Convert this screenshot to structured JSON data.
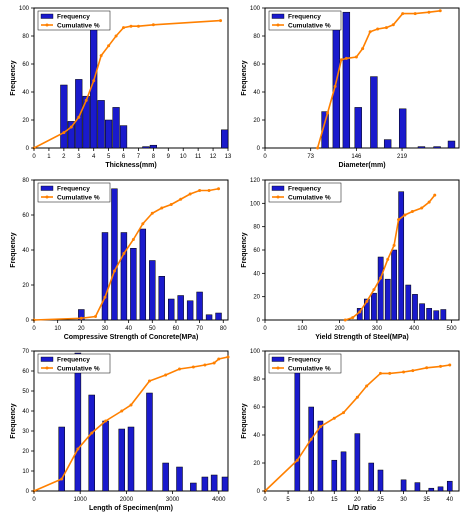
{
  "colors": {
    "frequency_bar": "#1a1acc",
    "bar_edge": "#000000",
    "cumulative_line": "#ff8000",
    "axis": "#000000"
  },
  "chart_data": [
    {
      "type": "bar",
      "xlabel": "Thickness(mm)",
      "ylabel": "Frequency",
      "xlim": [
        0,
        13
      ],
      "ylim": [
        0,
        100
      ],
      "xticks": [
        {
          "v": 0,
          "t": "0"
        },
        {
          "v": 1,
          "t": "1"
        },
        {
          "v": 2,
          "t": "2"
        },
        {
          "v": 3,
          "t": "3"
        },
        {
          "v": 4,
          "t": "4"
        },
        {
          "v": 5,
          "t": "5"
        },
        {
          "v": 6,
          "t": "6"
        },
        {
          "v": 7,
          "t": "7"
        },
        {
          "v": 8,
          "t": "8"
        },
        {
          "v": 9,
          "t": "9"
        },
        {
          "v": 10,
          "t": "10"
        },
        {
          "v": 11,
          "t": "11"
        },
        {
          "v": 12,
          "t": "12"
        },
        {
          "v": 13,
          "t": "13"
        }
      ],
      "yticks": [
        {
          "v": 0,
          "t": "0"
        },
        {
          "v": 20,
          "t": "20"
        },
        {
          "v": 40,
          "t": "40"
        },
        {
          "v": 60,
          "t": "60"
        },
        {
          "v": 80,
          "t": "80"
        },
        {
          "v": 100,
          "t": "100"
        }
      ],
      "bar_width": 0.45,
      "bars": [
        [
          2,
          45
        ],
        [
          2.5,
          19
        ],
        [
          3,
          49
        ],
        [
          3.5,
          37
        ],
        [
          4,
          89
        ],
        [
          4.5,
          34
        ],
        [
          5,
          20
        ],
        [
          5.5,
          29
        ],
        [
          6,
          16
        ],
        [
          7.5,
          1
        ],
        [
          8,
          2
        ],
        [
          13,
          13
        ]
      ],
      "legend": [
        "Frequency",
        "Cumulative %"
      ],
      "legend_position": "top-left",
      "cumulative": [
        [
          0,
          0
        ],
        [
          2,
          11
        ],
        [
          2.5,
          15
        ],
        [
          3,
          22
        ],
        [
          3.5,
          34
        ],
        [
          4,
          48
        ],
        [
          4.5,
          66
        ],
        [
          5,
          73
        ],
        [
          5.5,
          80
        ],
        [
          6,
          86
        ],
        [
          6.5,
          87
        ],
        [
          7,
          87
        ],
        [
          8,
          88
        ],
        [
          12.5,
          91
        ]
      ]
    },
    {
      "type": "bar",
      "xlabel": "Diameter(mm)",
      "ylabel": "Frequency",
      "xlim": [
        0,
        310
      ],
      "ylim": [
        0,
        100
      ],
      "xticks": [
        {
          "v": 0,
          "t": "0"
        },
        {
          "v": 73,
          "t": "73"
        },
        {
          "v": 146,
          "t": "146"
        },
        {
          "v": 219,
          "t": "219"
        }
      ],
      "yticks": [
        {
          "v": 0,
          "t": "0"
        },
        {
          "v": 20,
          "t": "20"
        },
        {
          "v": 40,
          "t": "40"
        },
        {
          "v": 60,
          "t": "60"
        },
        {
          "v": 80,
          "t": "80"
        },
        {
          "v": 100,
          "t": "100"
        }
      ],
      "bar_width": 11,
      "bars": [
        [
          96,
          26
        ],
        [
          114,
          95
        ],
        [
          130,
          97
        ],
        [
          149,
          29
        ],
        [
          174,
          51
        ],
        [
          196,
          6
        ],
        [
          220,
          28
        ],
        [
          250,
          1
        ],
        [
          275,
          1
        ],
        [
          298,
          5
        ]
      ],
      "legend": [
        "Frequency",
        "Cumulative %"
      ],
      "legend_position": "top-left",
      "cumulative": [
        [
          84,
          0
        ],
        [
          100,
          25
        ],
        [
          112,
          44
        ],
        [
          122,
          63
        ],
        [
          130,
          64
        ],
        [
          146,
          65
        ],
        [
          156,
          71
        ],
        [
          168,
          83
        ],
        [
          180,
          85
        ],
        [
          194,
          86
        ],
        [
          205,
          88
        ],
        [
          220,
          96
        ],
        [
          240,
          96
        ],
        [
          262,
          97
        ],
        [
          280,
          98
        ]
      ]
    },
    {
      "type": "bar",
      "xlabel": "Compressive Strength of Concrete(MPa)",
      "ylabel": "Frequency",
      "xlim": [
        0,
        82
      ],
      "ylim": [
        0,
        80
      ],
      "xticks": [
        {
          "v": 0,
          "t": "0"
        },
        {
          "v": 10,
          "t": "10"
        },
        {
          "v": 20,
          "t": "20"
        },
        {
          "v": 30,
          "t": "30"
        },
        {
          "v": 40,
          "t": "40"
        },
        {
          "v": 50,
          "t": "50"
        },
        {
          "v": 60,
          "t": "60"
        },
        {
          "v": 70,
          "t": "70"
        },
        {
          "v": 80,
          "t": "80"
        }
      ],
      "yticks": [
        {
          "v": 0,
          "t": "0"
        },
        {
          "v": 20,
          "t": "20"
        },
        {
          "v": 40,
          "t": "40"
        },
        {
          "v": 60,
          "t": "60"
        },
        {
          "v": 80,
          "t": "80"
        }
      ],
      "bar_width": 2.5,
      "bars": [
        [
          20,
          6
        ],
        [
          30,
          50
        ],
        [
          34,
          75
        ],
        [
          38,
          50
        ],
        [
          42,
          41
        ],
        [
          46,
          52
        ],
        [
          50,
          34
        ],
        [
          54,
          25
        ],
        [
          58,
          12
        ],
        [
          62,
          14
        ],
        [
          66,
          11
        ],
        [
          70,
          16
        ],
        [
          74,
          3
        ],
        [
          78,
          4
        ]
      ],
      "legend": [
        "Frequency",
        "Cumulative %"
      ],
      "legend_position": "top-left",
      "cumulative": [
        [
          0,
          0
        ],
        [
          20,
          1
        ],
        [
          26,
          2
        ],
        [
          30,
          13
        ],
        [
          34,
          28
        ],
        [
          38,
          38
        ],
        [
          42,
          46
        ],
        [
          46,
          55
        ],
        [
          50,
          61
        ],
        [
          54,
          64
        ],
        [
          58,
          66
        ],
        [
          62,
          69
        ],
        [
          66,
          72
        ],
        [
          70,
          74
        ],
        [
          74,
          74
        ],
        [
          78,
          75
        ]
      ]
    },
    {
      "type": "bar",
      "xlabel": "Yield Strength of Steel(MPa)",
      "ylabel": "Frequency",
      "xlim": [
        0,
        520
      ],
      "ylim": [
        0,
        120
      ],
      "xticks": [
        {
          "v": 0,
          "t": "0"
        },
        {
          "v": 100,
          "t": "100"
        },
        {
          "v": 200,
          "t": "200"
        },
        {
          "v": 300,
          "t": "300"
        },
        {
          "v": 400,
          "t": "400"
        },
        {
          "v": 500,
          "t": "500"
        }
      ],
      "yticks": [
        {
          "v": 0,
          "t": "0"
        },
        {
          "v": 20,
          "t": "20"
        },
        {
          "v": 40,
          "t": "40"
        },
        {
          "v": 60,
          "t": "60"
        },
        {
          "v": 80,
          "t": "80"
        },
        {
          "v": 100,
          "t": "100"
        },
        {
          "v": 120,
          "t": "120"
        }
      ],
      "bar_width": 14,
      "bars": [
        [
          254,
          10
        ],
        [
          273,
          18
        ],
        [
          292,
          23
        ],
        [
          310,
          54
        ],
        [
          329,
          35
        ],
        [
          346,
          60
        ],
        [
          365,
          110
        ],
        [
          384,
          30
        ],
        [
          402,
          22
        ],
        [
          421,
          14
        ],
        [
          440,
          10
        ],
        [
          459,
          8
        ],
        [
          478,
          9
        ]
      ],
      "legend": [
        "Frequency",
        "Cumulative %"
      ],
      "legend_position": "top-left",
      "cumulative": [
        [
          215,
          0
        ],
        [
          235,
          2
        ],
        [
          254,
          7
        ],
        [
          273,
          16
        ],
        [
          292,
          26
        ],
        [
          310,
          36
        ],
        [
          329,
          52
        ],
        [
          346,
          64
        ],
        [
          358,
          86
        ],
        [
          375,
          90
        ],
        [
          395,
          93
        ],
        [
          420,
          96
        ],
        [
          440,
          101
        ],
        [
          455,
          107
        ]
      ]
    },
    {
      "type": "bar",
      "xlabel": "Length of Specimen(mm)",
      "ylabel": "Frequency",
      "xlim": [
        0,
        4200
      ],
      "ylim": [
        0,
        70
      ],
      "xticks": [
        {
          "v": 0,
          "t": "0"
        },
        {
          "v": 1000,
          "t": "1000"
        },
        {
          "v": 2000,
          "t": "2000"
        },
        {
          "v": 3000,
          "t": "3000"
        },
        {
          "v": 4000,
          "t": "4000"
        }
      ],
      "yticks": [
        {
          "v": 0,
          "t": "0"
        },
        {
          "v": 10,
          "t": "10"
        },
        {
          "v": 20,
          "t": "20"
        },
        {
          "v": 30,
          "t": "30"
        },
        {
          "v": 40,
          "t": "40"
        },
        {
          "v": 50,
          "t": "50"
        },
        {
          "v": 60,
          "t": "60"
        },
        {
          "v": 70,
          "t": "70"
        }
      ],
      "bar_width": 130,
      "bars": [
        [
          600,
          32
        ],
        [
          950,
          69
        ],
        [
          1250,
          48
        ],
        [
          1550,
          35
        ],
        [
          1900,
          31
        ],
        [
          2100,
          32
        ],
        [
          2500,
          49
        ],
        [
          2850,
          14
        ],
        [
          3150,
          12
        ],
        [
          3450,
          4
        ],
        [
          3700,
          7
        ],
        [
          3900,
          8
        ],
        [
          4200,
          7
        ]
      ],
      "legend": [
        "Frequency",
        "Cumulative %"
      ],
      "legend_position": "top-left",
      "cumulative": [
        [
          0,
          0
        ],
        [
          600,
          6
        ],
        [
          950,
          21
        ],
        [
          1250,
          29
        ],
        [
          1550,
          35
        ],
        [
          1900,
          40
        ],
        [
          2100,
          43
        ],
        [
          2500,
          55
        ],
        [
          2850,
          58
        ],
        [
          3150,
          61
        ],
        [
          3450,
          62
        ],
        [
          3700,
          63
        ],
        [
          3900,
          64
        ],
        [
          4000,
          66
        ],
        [
          4200,
          67
        ]
      ]
    },
    {
      "type": "bar",
      "xlabel": "L/D ratio",
      "ylabel": "Frequency",
      "xlim": [
        0,
        42
      ],
      "ylim": [
        0,
        100
      ],
      "xticks": [
        {
          "v": 0,
          "t": "0"
        },
        {
          "v": 5,
          "t": "5"
        },
        {
          "v": 10,
          "t": "10"
        },
        {
          "v": 15,
          "t": "15"
        },
        {
          "v": 20,
          "t": "20"
        },
        {
          "v": 25,
          "t": "25"
        },
        {
          "v": 30,
          "t": "30"
        },
        {
          "v": 35,
          "t": "35"
        },
        {
          "v": 40,
          "t": "40"
        }
      ],
      "yticks": [
        {
          "v": 0,
          "t": "0"
        },
        {
          "v": 20,
          "t": "20"
        },
        {
          "v": 40,
          "t": "40"
        },
        {
          "v": 60,
          "t": "60"
        },
        {
          "v": 80,
          "t": "80"
        },
        {
          "v": 100,
          "t": "100"
        }
      ],
      "bar_width": 1.1,
      "bars": [
        [
          7,
          89
        ],
        [
          10,
          60
        ],
        [
          12,
          50
        ],
        [
          15,
          22
        ],
        [
          17,
          28
        ],
        [
          20,
          41
        ],
        [
          23,
          20
        ],
        [
          25,
          15
        ],
        [
          30,
          8
        ],
        [
          33,
          6
        ],
        [
          36,
          2
        ],
        [
          38,
          3
        ],
        [
          40,
          7
        ]
      ],
      "legend": [
        "Frequency",
        "Cumulative %"
      ],
      "legend_position": "top-left",
      "cumulative": [
        [
          0,
          0
        ],
        [
          7,
          22
        ],
        [
          10,
          37
        ],
        [
          12,
          46
        ],
        [
          15,
          52
        ],
        [
          17,
          56
        ],
        [
          20,
          67
        ],
        [
          22,
          75
        ],
        [
          25,
          84
        ],
        [
          27,
          84
        ],
        [
          30,
          85
        ],
        [
          32,
          86
        ],
        [
          35,
          88
        ],
        [
          38,
          89
        ],
        [
          40,
          90
        ]
      ]
    }
  ]
}
